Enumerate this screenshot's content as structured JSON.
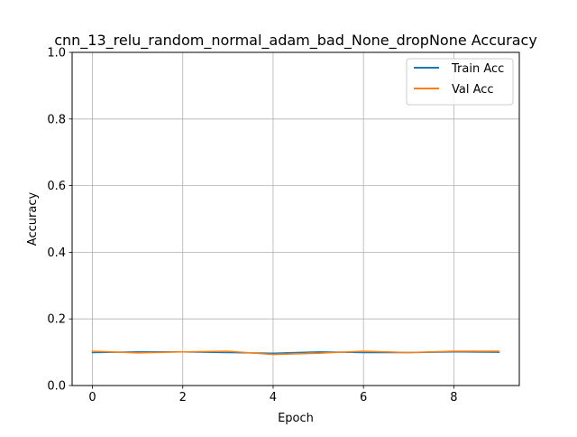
{
  "chart_data": {
    "type": "line",
    "title": "cnn_13_relu_random_normal_adam_bad_None_dropNone Accuracy",
    "xlabel": "Epoch",
    "ylabel": "Accuracy",
    "x": [
      0,
      1,
      2,
      3,
      4,
      5,
      6,
      7,
      8,
      9
    ],
    "xlim": [
      -0.45,
      9.45
    ],
    "ylim": [
      0,
      1
    ],
    "xticks": [
      0,
      2,
      4,
      6,
      8
    ],
    "yticks": [
      0.0,
      0.2,
      0.4,
      0.6,
      0.8,
      1.0
    ],
    "xtick_labels": [
      "0",
      "2",
      "4",
      "6",
      "8"
    ],
    "ytick_labels": [
      "0.0",
      "0.2",
      "0.4",
      "0.6",
      "0.8",
      "1.0"
    ],
    "grid": true,
    "legend_position": "top-right",
    "series": [
      {
        "name": "Train Acc",
        "color": "#1f77b4",
        "values": [
          0.099,
          0.101,
          0.101,
          0.099,
          0.097,
          0.101,
          0.099,
          0.099,
          0.101,
          0.1
        ]
      },
      {
        "name": "Val Acc",
        "color": "#ff7f0e",
        "values": [
          0.103,
          0.098,
          0.101,
          0.103,
          0.093,
          0.097,
          0.103,
          0.099,
          0.103,
          0.103
        ]
      }
    ]
  }
}
